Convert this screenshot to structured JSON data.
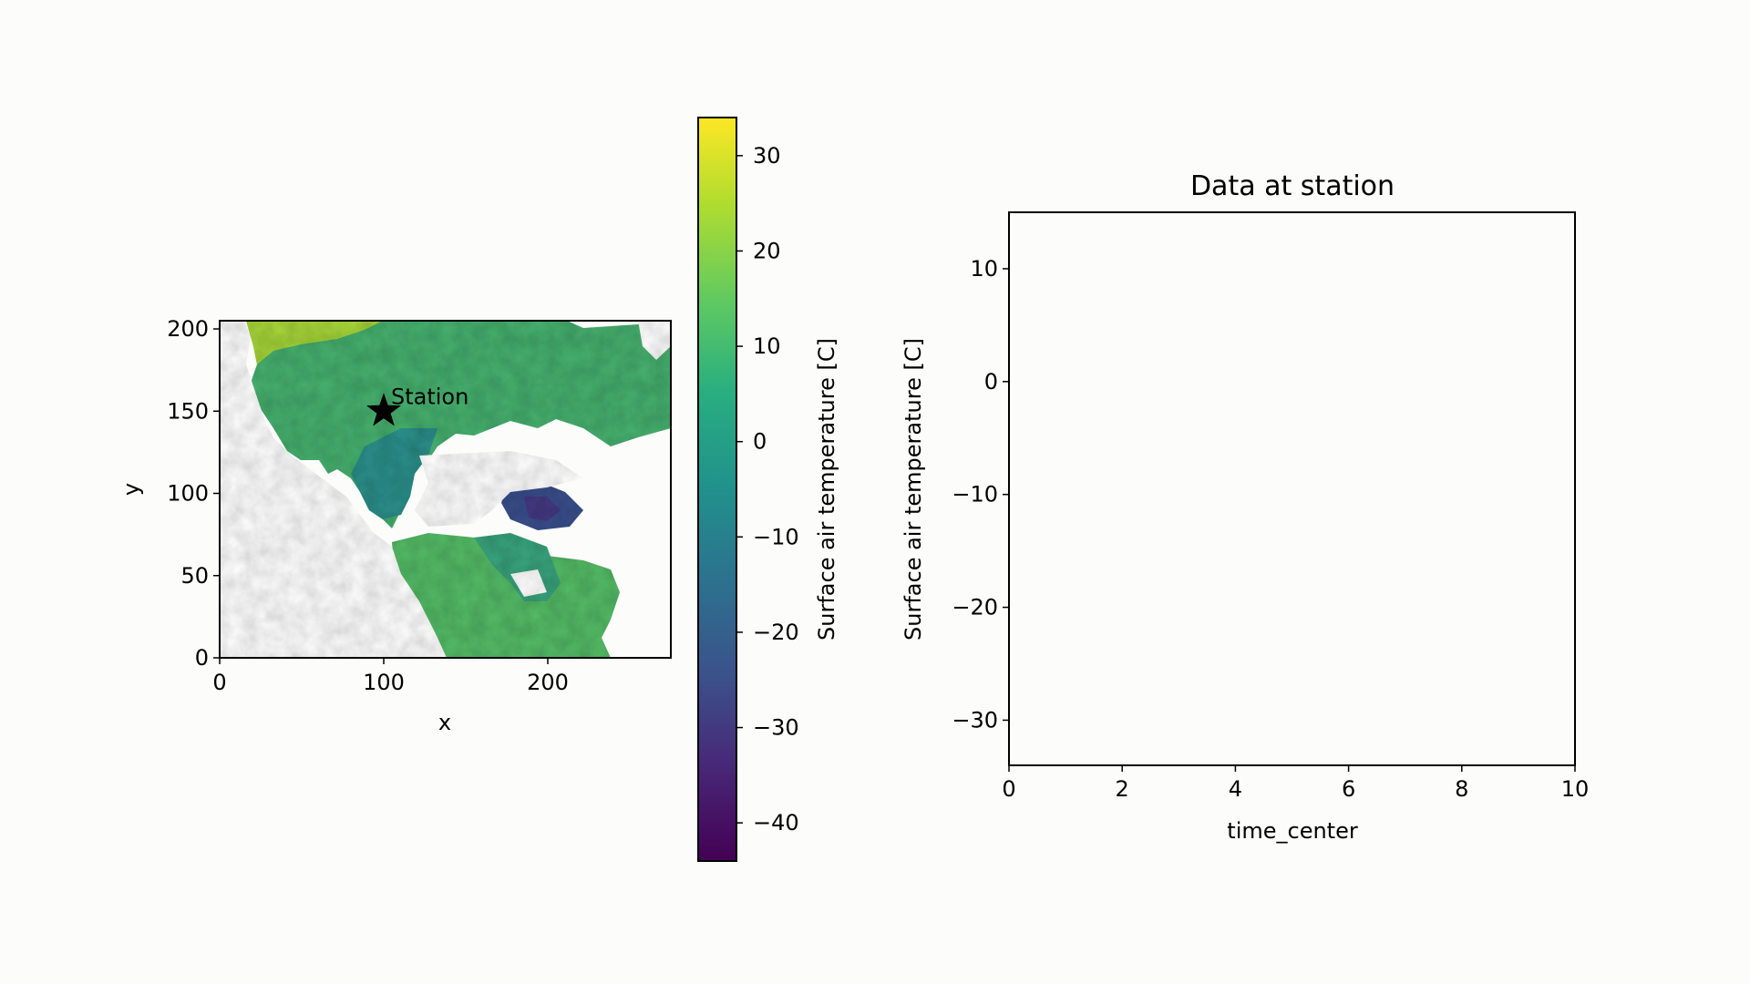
{
  "figure": {
    "background": "#fcfcfa"
  },
  "chart_data": [
    {
      "type": "heatmap",
      "name": "map",
      "xlabel": "x",
      "ylabel": "y",
      "xlim": [
        0,
        275
      ],
      "ylim": [
        0,
        205
      ],
      "xticks": [
        0,
        100,
        200
      ],
      "yticks": [
        0,
        50,
        100,
        150,
        200
      ],
      "colormap": "viridis",
      "colorbar": {
        "label": "Surface air temperature [C]",
        "range": [
          -44,
          34
        ],
        "ticks": [
          30,
          20,
          10,
          0,
          -10,
          -20,
          -30,
          -40
        ]
      },
      "marker": {
        "label": "Station",
        "x": 100,
        "y": 150,
        "symbol": "star"
      },
      "missing_color": "#ffffff"
    },
    {
      "type": "line",
      "name": "station-series",
      "title": "Data at station",
      "xlabel": "time_center",
      "ylabel": "Surface air temperature [C]",
      "xlim": [
        0,
        10
      ],
      "ylim": [
        -34,
        15
      ],
      "xticks": [
        0,
        2,
        4,
        6,
        8,
        10
      ],
      "yticks": [
        10,
        0,
        -10,
        -20,
        -30
      ],
      "series": []
    }
  ]
}
